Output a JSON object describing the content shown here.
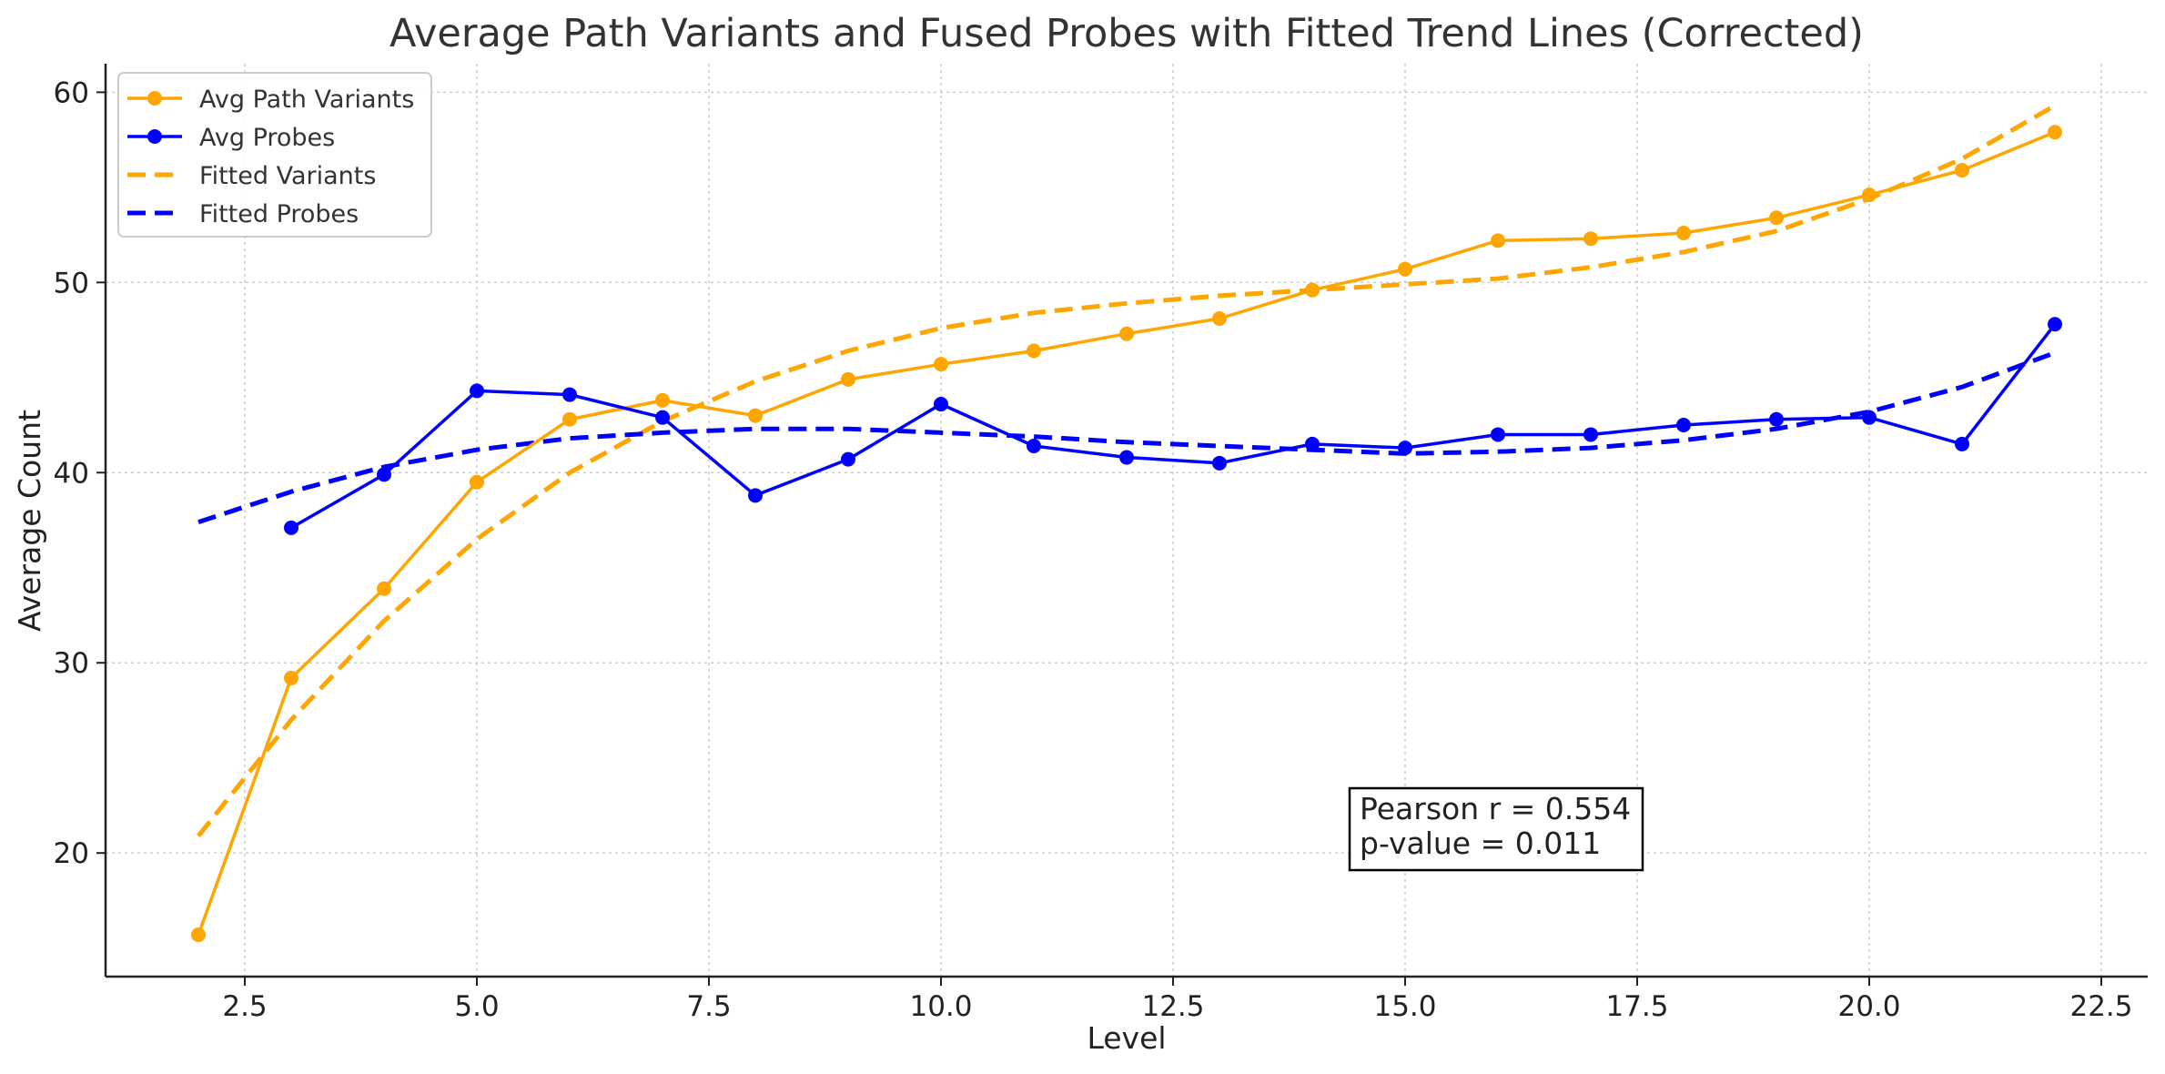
{
  "chart_data": {
    "type": "line",
    "title": "Average Path Variants and Fused Probes with Fitted Trend Lines (Corrected)",
    "xlabel": "Level",
    "ylabel": "Average Count",
    "xlim": [
      1.0,
      23.0
    ],
    "ylim": [
      13.5,
      61.5
    ],
    "xticks": [
      2.5,
      5.0,
      7.5,
      10.0,
      12.5,
      15.0,
      17.5,
      20.0,
      22.5
    ],
    "xtick_labels": [
      "2.5",
      "5.0",
      "7.5",
      "10.0",
      "12.5",
      "15.0",
      "17.5",
      "20.0",
      "22.5"
    ],
    "yticks": [
      20,
      30,
      40,
      50,
      60
    ],
    "ytick_labels": [
      "20",
      "30",
      "40",
      "50",
      "60"
    ],
    "grid": true,
    "legend_position": "top-left",
    "series": [
      {
        "name": "Avg Path Variants",
        "style": "solid-marker",
        "color": "#FFA500",
        "x": [
          2,
          3,
          4,
          5,
          6,
          7,
          8,
          9,
          10,
          11,
          12,
          13,
          14,
          15,
          16,
          17,
          18,
          19,
          20,
          21,
          22
        ],
        "y": [
          15.7,
          29.2,
          33.9,
          39.5,
          42.8,
          43.8,
          43.0,
          44.9,
          45.7,
          46.4,
          47.3,
          48.1,
          49.6,
          50.7,
          52.2,
          52.3,
          52.6,
          53.4,
          54.6,
          55.9,
          57.9
        ]
      },
      {
        "name": "Avg Probes",
        "style": "solid-marker",
        "color": "#0000FF",
        "x": [
          3,
          4,
          5,
          6,
          7,
          8,
          9,
          10,
          11,
          12,
          13,
          14,
          15,
          16,
          17,
          18,
          19,
          20,
          21,
          22
        ],
        "y": [
          37.1,
          39.9,
          44.3,
          44.1,
          42.9,
          38.8,
          40.7,
          43.6,
          41.4,
          40.8,
          40.5,
          41.5,
          41.3,
          42.0,
          42.0,
          42.5,
          42.8,
          42.9,
          41.5,
          47.8
        ]
      },
      {
        "name": "Fitted Variants",
        "style": "dashed",
        "color": "#FFA500",
        "x": [
          2,
          3,
          4,
          5,
          6,
          7,
          8,
          9,
          10,
          11,
          12,
          13,
          14,
          15,
          16,
          17,
          18,
          19,
          20,
          21,
          22
        ],
        "y": [
          20.9,
          27.0,
          32.2,
          36.5,
          40.0,
          42.7,
          44.8,
          46.4,
          47.6,
          48.4,
          48.9,
          49.3,
          49.6,
          49.9,
          50.2,
          50.8,
          51.6,
          52.7,
          54.4,
          56.5,
          59.3
        ]
      },
      {
        "name": "Fitted Probes",
        "style": "dashed",
        "color": "#0000FF",
        "x": [
          2,
          3,
          4,
          5,
          6,
          7,
          8,
          9,
          10,
          11,
          12,
          13,
          14,
          15,
          16,
          17,
          18,
          19,
          20,
          21,
          22
        ],
        "y": [
          37.4,
          39.0,
          40.3,
          41.2,
          41.8,
          42.1,
          42.3,
          42.3,
          42.1,
          41.9,
          41.6,
          41.4,
          41.2,
          41.0,
          41.1,
          41.3,
          41.7,
          42.3,
          43.2,
          44.5,
          46.3
        ]
      }
    ],
    "annotation": {
      "lines": [
        "Pearson r = 0.554",
        "p-value = 0.011"
      ]
    }
  }
}
